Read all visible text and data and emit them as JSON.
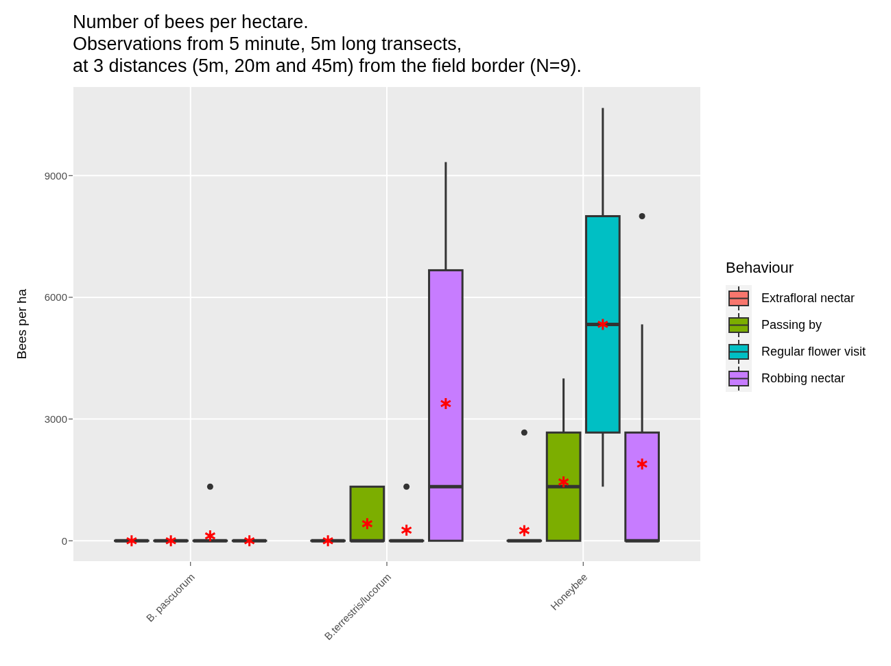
{
  "chart_data": {
    "type": "box",
    "title": "Number of bees per hectare.\nObservations from 5 minute, 5m long transects,\nat 3 distances (5m, 20m and 45m) from the field border (N=9).",
    "ylabel": "Bees per ha",
    "legend_title": "Behaviour",
    "legend": "right",
    "grid": true,
    "categories": [
      "B. pascuorum",
      "B.terrestris/lucorum",
      "Honeybee"
    ],
    "ylim": [
      -520,
      11200
    ],
    "yticks": [
      0,
      3000,
      6000,
      9000
    ],
    "series": [
      {
        "name": "Extrafloral nectar",
        "color": "#f8766d",
        "boxes": [
          {
            "low": 0,
            "q1": 0,
            "median": 0,
            "q3": 0,
            "high": 0,
            "mean": 0
          },
          {
            "low": 0,
            "q1": 0,
            "median": 0,
            "q3": 0,
            "high": 0,
            "mean": 0
          },
          {
            "low": 0,
            "q1": 0,
            "median": 0,
            "q3": 0,
            "high": 0,
            "mean": 250,
            "outliers": [
              2667
            ]
          }
        ]
      },
      {
        "name": "Passing by",
        "color": "#7cae00",
        "boxes": [
          {
            "low": 0,
            "q1": 0,
            "median": 0,
            "q3": 0,
            "high": 0,
            "mean": 0
          },
          {
            "low": 0,
            "q1": 0,
            "median": 0,
            "q3": 1333,
            "high": 1333,
            "mean": 420
          },
          {
            "low": 0,
            "q1": 0,
            "median": 1333,
            "q3": 2667,
            "high": 4000,
            "mean": 1450
          }
        ]
      },
      {
        "name": "Regular flower visit",
        "color": "#00bfc4",
        "boxes": [
          {
            "low": 0,
            "q1": 0,
            "median": 0,
            "q3": 0,
            "high": 0,
            "mean": 120,
            "outliers": [
              1333
            ]
          },
          {
            "low": 0,
            "q1": 0,
            "median": 0,
            "q3": 0,
            "high": 0,
            "mean": 260,
            "outliers": [
              1333
            ]
          },
          {
            "low": 1333,
            "q1": 2667,
            "median": 5333,
            "q3": 8000,
            "high": 10667,
            "mean": 5333
          }
        ]
      },
      {
        "name": "Robbing nectar",
        "color": "#c77cff",
        "boxes": [
          {
            "low": 0,
            "q1": 0,
            "median": 0,
            "q3": 0,
            "high": 0,
            "mean": 0
          },
          {
            "low": 0,
            "q1": 0,
            "median": 1333,
            "q3": 6667,
            "high": 9333,
            "mean": 3380
          },
          {
            "low": 0,
            "q1": 0,
            "median": 0,
            "q3": 2667,
            "high": 5333,
            "mean": 1890,
            "outliers": [
              8000
            ]
          }
        ]
      }
    ]
  }
}
